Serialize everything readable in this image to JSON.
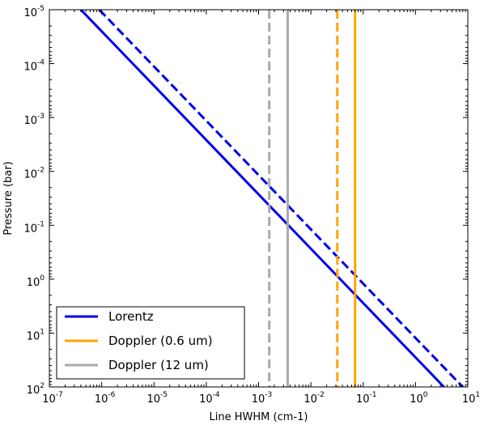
{
  "chart_data": {
    "type": "line",
    "xlabel": "Line HWHM (cm-1)",
    "ylabel": "Pressure (bar)",
    "x_scale": "log",
    "y_scale": "log",
    "y_inverted": true,
    "xlim": [
      1e-07,
      10
    ],
    "ylim": [
      100,
      1e-05
    ],
    "x_ticks": [
      {
        "base": "10",
        "exp": "-7",
        "value": 1e-07
      },
      {
        "base": "10",
        "exp": "-6",
        "value": 1e-06
      },
      {
        "base": "10",
        "exp": "-5",
        "value": 1e-05
      },
      {
        "base": "10",
        "exp": "-4",
        "value": 0.0001
      },
      {
        "base": "10",
        "exp": "-3",
        "value": 0.001
      },
      {
        "base": "10",
        "exp": "-2",
        "value": 0.01
      },
      {
        "base": "10",
        "exp": "-1",
        "value": 0.1
      },
      {
        "base": "10",
        "exp": "0",
        "value": 1
      },
      {
        "base": "10",
        "exp": "1",
        "value": 10
      }
    ],
    "y_ticks": [
      {
        "base": "10",
        "exp": "-5",
        "value": 1e-05
      },
      {
        "base": "10",
        "exp": "-4",
        "value": 0.0001
      },
      {
        "base": "10",
        "exp": "-3",
        "value": 0.001
      },
      {
        "base": "10",
        "exp": "-2",
        "value": 0.01
      },
      {
        "base": "10",
        "exp": "-1",
        "value": 0.1
      },
      {
        "base": "10",
        "exp": "0",
        "value": 1
      },
      {
        "base": "10",
        "exp": "1",
        "value": 10
      },
      {
        "base": "10",
        "exp": "2",
        "value": 100
      }
    ],
    "grid": false,
    "legend_position": "lower-left",
    "legend": [
      {
        "label": "Lorentz",
        "color": "#0000ee"
      },
      {
        "label": "Doppler (0.6 um)",
        "color": "#ffa500"
      },
      {
        "label": "Doppler (12 um)",
        "color": "#aaaaaa"
      }
    ],
    "series": [
      {
        "group": "Lorentz",
        "style": "solid",
        "color": "#0000ee",
        "x": [
          4e-07,
          3.5
        ],
        "y": [
          1e-05,
          100
        ]
      },
      {
        "group": "Lorentz",
        "style": "dashed",
        "color": "#0000ee",
        "x": [
          9e-07,
          8.0
        ],
        "y": [
          1e-05,
          100
        ]
      },
      {
        "group": "Doppler (0.6 um)",
        "style": "solid",
        "color": "#ffa500",
        "x_const": 0.07
      },
      {
        "group": "Doppler (0.6 um)",
        "style": "dashed",
        "color": "#ffa500",
        "x_const": 0.032
      },
      {
        "group": "Doppler (12 um)",
        "style": "solid",
        "color": "#aaaaaa",
        "x_const": 0.0036
      },
      {
        "group": "Doppler (12 um)",
        "style": "dashed",
        "color": "#aaaaaa",
        "x_const": 0.0016
      }
    ]
  }
}
